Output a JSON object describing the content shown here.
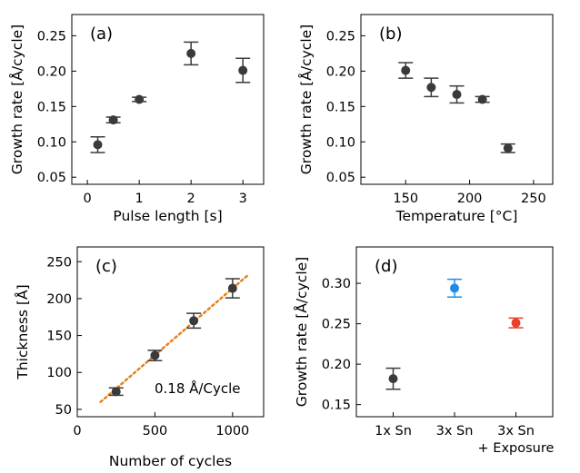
{
  "chart_data": [
    {
      "type": "scatter",
      "panel_label": "(a)",
      "xlabel": "Pulse length [s]",
      "ylabel": "Growth rate [Å/cycle]",
      "xlim": [
        -0.3,
        3.4
      ],
      "ylim": [
        0.04,
        0.28
      ],
      "xticks": [
        0,
        1,
        2,
        3
      ],
      "yticks": [
        0.05,
        0.1,
        0.15,
        0.2,
        0.25
      ],
      "ytick_format": 2,
      "series": [
        {
          "color": "#3a3a3a",
          "points": [
            {
              "x": 0.2,
              "y": 0.096,
              "err": 0.011
            },
            {
              "x": 0.5,
              "y": 0.131,
              "err": 0.004
            },
            {
              "x": 1.0,
              "y": 0.16,
              "err": 0.003
            },
            {
              "x": 2.0,
              "y": 0.225,
              "err": 0.016
            },
            {
              "x": 3.0,
              "y": 0.201,
              "err": 0.017
            }
          ]
        }
      ]
    },
    {
      "type": "scatter",
      "panel_label": "(b)",
      "xlabel": "Temperature [°C]",
      "ylabel": "Growth rate [Å/cycle]",
      "xlim": [
        115,
        265
      ],
      "ylim": [
        0.04,
        0.28
      ],
      "xticks": [
        150,
        200,
        250
      ],
      "yticks": [
        0.05,
        0.1,
        0.15,
        0.2,
        0.25
      ],
      "ytick_format": 2,
      "series": [
        {
          "color": "#3a3a3a",
          "points": [
            {
              "x": 150,
              "y": 0.201,
              "err": 0.011
            },
            {
              "x": 170,
              "y": 0.177,
              "err": 0.013
            },
            {
              "x": 190,
              "y": 0.167,
              "err": 0.012
            },
            {
              "x": 210,
              "y": 0.16,
              "err": 0.004
            },
            {
              "x": 230,
              "y": 0.091,
              "err": 0.006
            }
          ]
        }
      ]
    },
    {
      "type": "scatter",
      "panel_label": "(c)",
      "xlabel": "Number of cycles",
      "ylabel": "Thickness [Å]",
      "xlim": [
        0,
        1200
      ],
      "ylim": [
        40,
        270
      ],
      "xticks": [
        0,
        500,
        1000
      ],
      "yticks": [
        50,
        100,
        150,
        200,
        250
      ],
      "ytick_format": 0,
      "annotation": "0.18 Å/Cycle",
      "fit_line": {
        "x": [
          150,
          1100
        ],
        "y": [
          60,
          232
        ],
        "color": "#e8801f"
      },
      "series": [
        {
          "color": "#3a3a3a",
          "points": [
            {
              "x": 250,
              "y": 74,
              "err": 5
            },
            {
              "x": 500,
              "y": 123,
              "err": 7
            },
            {
              "x": 750,
              "y": 170,
              "err": 10
            },
            {
              "x": 1000,
              "y": 214,
              "err": 13
            }
          ]
        }
      ]
    },
    {
      "type": "scatter",
      "panel_label": "(d)",
      "xlabel": "",
      "ylabel": "Growth rate [Å/cycle]",
      "xlim": [
        -0.6,
        2.6
      ],
      "ylim": [
        0.135,
        0.345
      ],
      "categories": [
        "1x Sn",
        "3x Sn",
        "3x Sn\n+ Exposure"
      ],
      "yticks": [
        0.15,
        0.2,
        0.25,
        0.3
      ],
      "ytick_format": 2,
      "series": [
        {
          "color": "#3a3a3a",
          "points": [
            {
              "x": 0,
              "y": 0.182,
              "err": 0.013,
              "color": "#3a3a3a"
            },
            {
              "x": 1,
              "y": 0.294,
              "err": 0.011,
              "color": "#1f8be8"
            },
            {
              "x": 2,
              "y": 0.251,
              "err": 0.006,
              "color": "#e8402a"
            }
          ]
        }
      ]
    }
  ]
}
